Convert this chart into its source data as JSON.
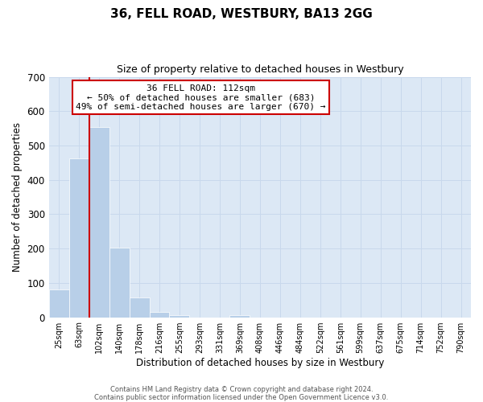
{
  "title": "36, FELL ROAD, WESTBURY, BA13 2GG",
  "subtitle": "Size of property relative to detached houses in Westbury",
  "xlabel": "Distribution of detached houses by size in Westbury",
  "ylabel": "Number of detached properties",
  "bar_labels": [
    "25sqm",
    "63sqm",
    "102sqm",
    "140sqm",
    "178sqm",
    "216sqm",
    "255sqm",
    "293sqm",
    "331sqm",
    "369sqm",
    "408sqm",
    "446sqm",
    "484sqm",
    "522sqm",
    "561sqm",
    "599sqm",
    "637sqm",
    "675sqm",
    "714sqm",
    "752sqm",
    "790sqm"
  ],
  "bar_values": [
    80,
    462,
    554,
    202,
    57,
    15,
    5,
    0,
    0,
    5,
    0,
    0,
    0,
    0,
    0,
    0,
    0,
    0,
    0,
    0,
    0
  ],
  "bar_color": "#b8cfe8",
  "bar_edge_color": "#b8cfe8",
  "grid_color": "#c8d8ec",
  "background_color": "#dce8f5",
  "fig_background": "#ffffff",
  "ylim": [
    0,
    700
  ],
  "yticks": [
    0,
    100,
    200,
    300,
    400,
    500,
    600,
    700
  ],
  "vline_color": "#cc0000",
  "annotation_title": "36 FELL ROAD: 112sqm",
  "annotation_line1": "← 50% of detached houses are smaller (683)",
  "annotation_line2": "49% of semi-detached houses are larger (670) →",
  "annotation_box_color": "#ffffff",
  "annotation_box_edge": "#cc0000",
  "footer1": "Contains HM Land Registry data © Crown copyright and database right 2024.",
  "footer2": "Contains public sector information licensed under the Open Government Licence v3.0."
}
